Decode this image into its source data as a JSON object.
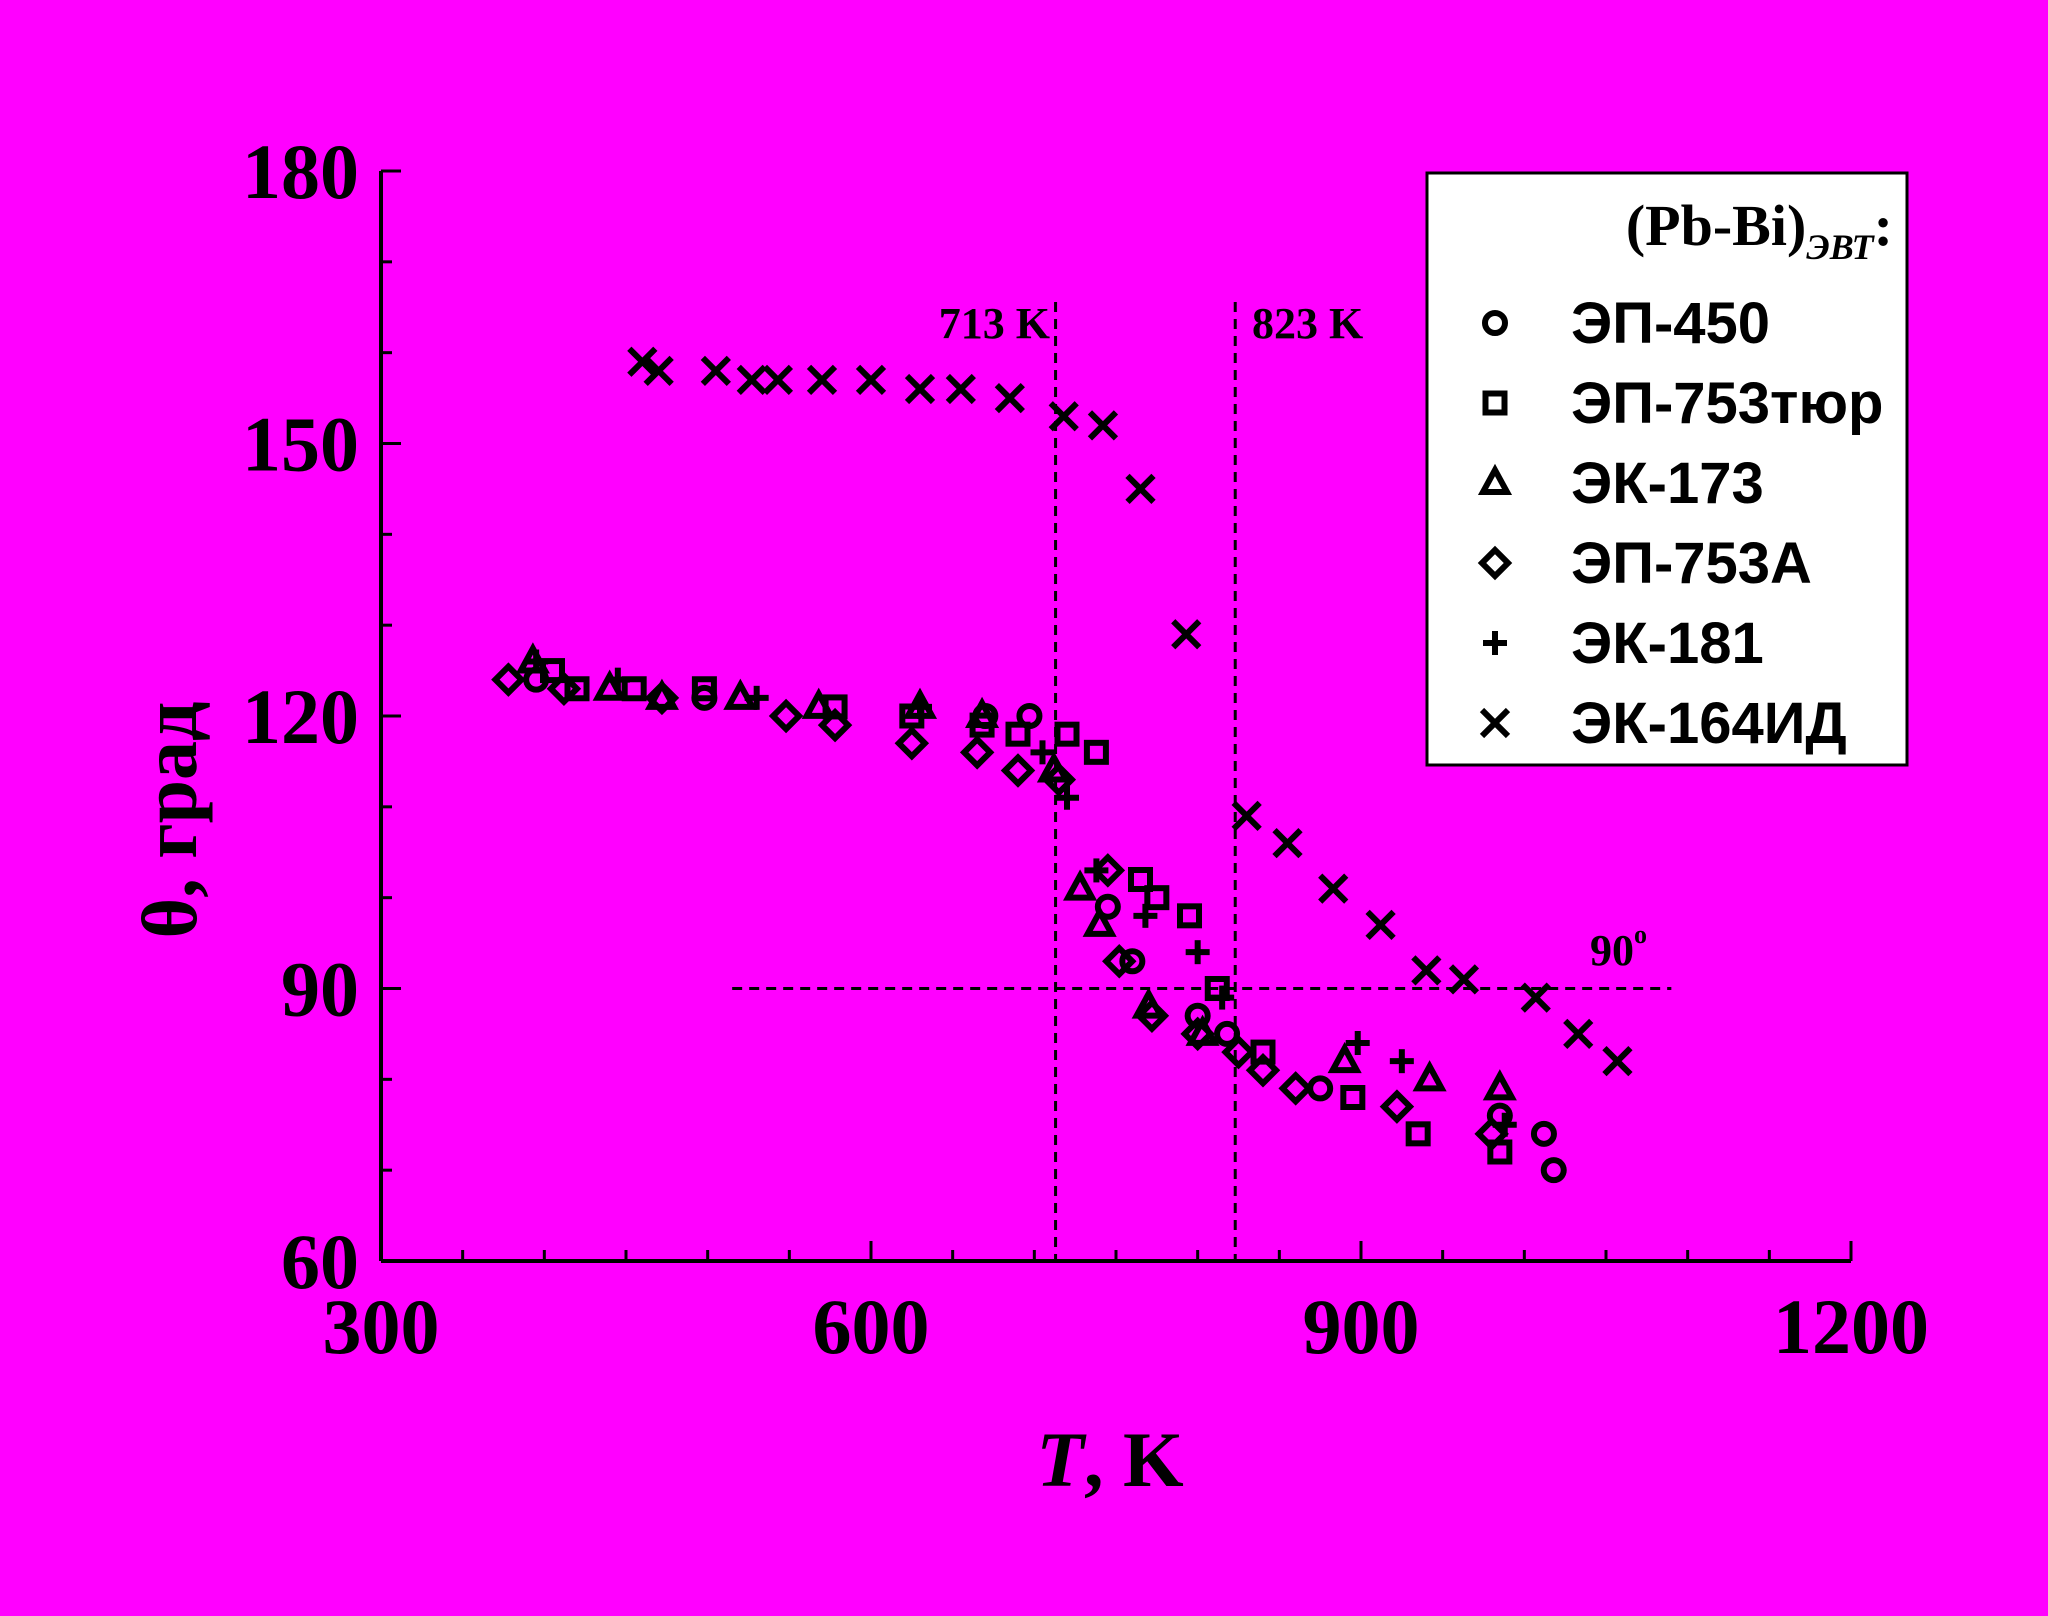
{
  "chart_data": {
    "type": "scatter",
    "xlabel": "T, K",
    "xlabel_italic": "T",
    "xlabel_rest": ", K",
    "ylabel": "θ, град",
    "xlim": [
      300,
      1200
    ],
    "ylim": [
      60,
      180
    ],
    "xticks": [
      300,
      600,
      900,
      1200
    ],
    "yticks": [
      60,
      90,
      120,
      150,
      180
    ],
    "x_minor_step": 50,
    "y_minor_step": 10,
    "grid": false,
    "legend_position": "top-right",
    "legend_title": "(Pb-Bi)",
    "legend_title_sub": "ЭВТ",
    "legend_title_suffix": ":",
    "reference_lines": {
      "v713": {
        "x": 713,
        "label": "713 K"
      },
      "v823": {
        "x": 823,
        "label": "823 K"
      },
      "h90": {
        "y": 90,
        "x_range": [
          515,
          1090
        ],
        "label": "90",
        "label_sup": "o"
      }
    },
    "series": [
      {
        "name": "ЭП-450",
        "marker": "circle",
        "points": [
          [
            395,
            124
          ],
          [
            498,
            122
          ],
          [
            670,
            120
          ],
          [
            697,
            120
          ],
          [
            745,
            99
          ],
          [
            760,
            93
          ],
          [
            800,
            87
          ],
          [
            818,
            85
          ],
          [
            875,
            79
          ],
          [
            985,
            76
          ],
          [
            1012,
            74
          ],
          [
            1018,
            70
          ]
        ]
      },
      {
        "name": "ЭП-753тюр",
        "marker": "square",
        "points": [
          [
            405,
            125
          ],
          [
            420,
            123
          ],
          [
            455,
            123
          ],
          [
            498,
            123
          ],
          [
            578,
            121
          ],
          [
            625,
            120
          ],
          [
            668,
            119
          ],
          [
            690,
            118
          ],
          [
            720,
            118
          ],
          [
            738,
            116
          ],
          [
            765,
            102
          ],
          [
            775,
            100
          ],
          [
            795,
            98
          ],
          [
            812,
            90
          ],
          [
            840,
            83
          ],
          [
            895,
            78
          ],
          [
            935,
            74
          ],
          [
            985,
            72
          ]
        ]
      },
      {
        "name": "ЭК-173",
        "marker": "triangle",
        "points": [
          [
            393,
            126
          ],
          [
            440,
            123
          ],
          [
            472,
            122
          ],
          [
            520,
            122
          ],
          [
            568,
            121
          ],
          [
            630,
            121
          ],
          [
            668,
            120
          ],
          [
            712,
            114
          ],
          [
            728,
            101
          ],
          [
            740,
            97
          ],
          [
            770,
            88
          ],
          [
            803,
            85
          ],
          [
            890,
            82
          ],
          [
            942,
            80
          ],
          [
            985,
            79
          ]
        ]
      },
      {
        "name": "ЭП-753А",
        "marker": "diamond",
        "points": [
          [
            378,
            124
          ],
          [
            412,
            123
          ],
          [
            472,
            122
          ],
          [
            548,
            120
          ],
          [
            578,
            119
          ],
          [
            625,
            117
          ],
          [
            665,
            116
          ],
          [
            690,
            114
          ],
          [
            715,
            113
          ],
          [
            745,
            103
          ],
          [
            752,
            93
          ],
          [
            772,
            87
          ],
          [
            800,
            85
          ],
          [
            825,
            83
          ],
          [
            840,
            81
          ],
          [
            860,
            79
          ],
          [
            922,
            77
          ],
          [
            980,
            74
          ]
        ]
      },
      {
        "name": "ЭК-181",
        "marker": "plus",
        "points": [
          [
            395,
            126
          ],
          [
            445,
            124
          ],
          [
            530,
            122
          ],
          [
            630,
            121
          ],
          [
            705,
            116
          ],
          [
            720,
            111
          ],
          [
            738,
            103
          ],
          [
            768,
            98
          ],
          [
            800,
            94
          ],
          [
            815,
            89
          ],
          [
            898,
            84
          ],
          [
            925,
            82
          ],
          [
            988,
            75
          ]
        ]
      },
      {
        "name": "ЭК-164ИД",
        "marker": "x",
        "points": [
          [
            460,
            159
          ],
          [
            470,
            158
          ],
          [
            505,
            158
          ],
          [
            527,
            157
          ],
          [
            543,
            157
          ],
          [
            570,
            157
          ],
          [
            600,
            157
          ],
          [
            630,
            156
          ],
          [
            655,
            156
          ],
          [
            685,
            155
          ],
          [
            718,
            153
          ],
          [
            742,
            152
          ],
          [
            765,
            145
          ],
          [
            793,
            129
          ],
          [
            830,
            109
          ],
          [
            855,
            106
          ],
          [
            883,
            101
          ],
          [
            912,
            97
          ],
          [
            940,
            92
          ],
          [
            963,
            91
          ],
          [
            1007,
            89
          ],
          [
            1033,
            85
          ],
          [
            1057,
            82
          ]
        ]
      }
    ]
  }
}
